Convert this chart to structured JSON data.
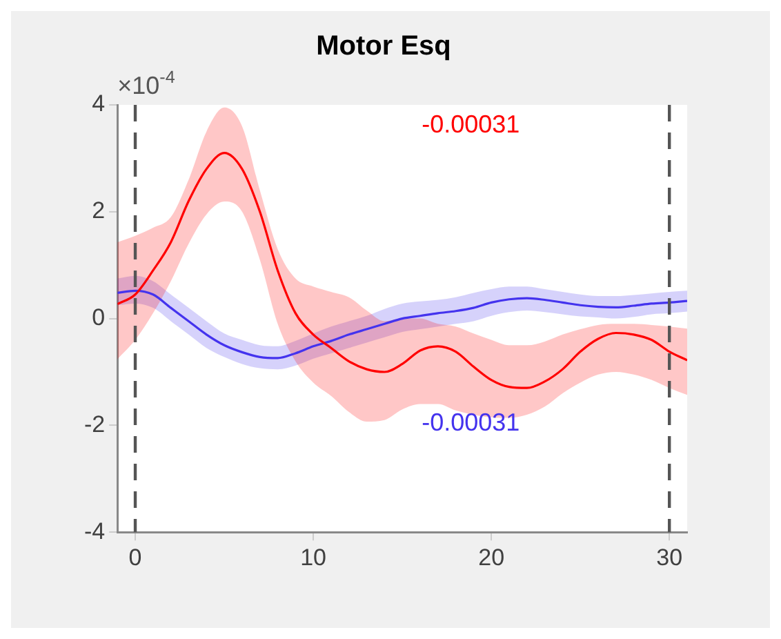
{
  "chart_data": {
    "type": "line",
    "title": "Motor Esq",
    "x": [
      -1,
      0,
      1,
      2,
      3,
      4,
      5,
      6,
      7,
      8,
      9,
      10,
      11,
      12,
      13,
      14,
      15,
      16,
      17,
      18,
      19,
      20,
      21,
      22,
      23,
      24,
      25,
      26,
      27,
      28,
      29,
      30,
      31
    ],
    "series": [
      {
        "color": "#ff0000",
        "values": [
          0.27,
          0.45,
          0.9,
          1.43,
          2.2,
          2.8,
          3.1,
          2.8,
          2.0,
          0.9,
          0.1,
          -0.3,
          -0.55,
          -0.8,
          -0.95,
          -1.0,
          -0.85,
          -0.6,
          -0.52,
          -0.62,
          -0.9,
          -1.15,
          -1.28,
          -1.3,
          -1.18,
          -0.95,
          -0.62,
          -0.38,
          -0.27,
          -0.3,
          -0.4,
          -0.62,
          -0.78
        ],
        "upper": [
          1.43,
          1.55,
          1.7,
          1.9,
          2.6,
          3.5,
          3.95,
          3.6,
          2.4,
          1.3,
          0.75,
          0.6,
          0.5,
          0.4,
          0.15,
          -0.05,
          0.0,
          0.0,
          -0.1,
          -0.15,
          -0.28,
          -0.4,
          -0.5,
          -0.5,
          -0.43,
          -0.3,
          -0.2,
          -0.12,
          -0.1,
          -0.1,
          -0.12,
          -0.15,
          -0.19
        ],
        "lower": [
          -0.76,
          -0.4,
          0.1,
          0.7,
          1.4,
          1.95,
          2.19,
          2.0,
          1.1,
          -0.1,
          -0.8,
          -1.2,
          -1.45,
          -1.75,
          -1.93,
          -1.9,
          -1.7,
          -1.6,
          -1.6,
          -1.72,
          -1.8,
          -1.85,
          -1.86,
          -1.8,
          -1.65,
          -1.4,
          -1.2,
          -1.05,
          -1.0,
          -1.05,
          -1.15,
          -1.3,
          -1.43
        ]
      },
      {
        "color": "#4433ee",
        "values": [
          0.48,
          0.52,
          0.45,
          0.2,
          -0.05,
          -0.3,
          -0.5,
          -0.63,
          -0.72,
          -0.74,
          -0.65,
          -0.52,
          -0.42,
          -0.3,
          -0.2,
          -0.1,
          0.0,
          0.05,
          0.1,
          0.14,
          0.2,
          0.3,
          0.36,
          0.38,
          0.35,
          0.3,
          0.25,
          0.22,
          0.21,
          0.24,
          0.28,
          0.3,
          0.33
        ],
        "upper": [
          0.75,
          0.8,
          0.7,
          0.45,
          0.2,
          -0.05,
          -0.28,
          -0.4,
          -0.5,
          -0.52,
          -0.42,
          -0.28,
          -0.15,
          -0.05,
          0.05,
          0.18,
          0.28,
          0.32,
          0.35,
          0.4,
          0.48,
          0.55,
          0.6,
          0.6,
          0.55,
          0.5,
          0.45,
          0.42,
          0.42,
          0.44,
          0.47,
          0.5,
          0.52
        ],
        "lower": [
          0.25,
          0.28,
          0.2,
          -0.05,
          -0.3,
          -0.55,
          -0.72,
          -0.85,
          -0.93,
          -0.95,
          -0.88,
          -0.75,
          -0.65,
          -0.55,
          -0.45,
          -0.35,
          -0.25,
          -0.2,
          -0.15,
          -0.1,
          -0.05,
          0.05,
          0.12,
          0.15,
          0.12,
          0.08,
          0.04,
          0.02,
          0.0,
          0.03,
          0.08,
          0.1,
          0.13
        ]
      }
    ],
    "xlim": [
      -1,
      31
    ],
    "xticks": [
      0,
      10,
      20,
      30
    ],
    "ylim": [
      -4,
      4
    ],
    "yticks": [
      -4,
      -2,
      0,
      2,
      4
    ],
    "ref_lines": [
      {
        "axis": "x",
        "value": 0,
        "color": "#555555",
        "line_style": "dashed"
      },
      {
        "axis": "x",
        "value": 30,
        "color": "#555555",
        "line_style": "dashed"
      }
    ],
    "annotations": [
      "×10$^{-4}$",
      "-0.00031",
      "-0.00031"
    ],
    "legend": false
  }
}
